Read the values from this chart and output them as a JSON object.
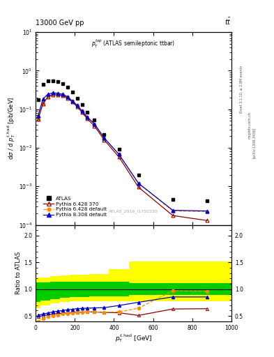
{
  "title_left": "13000 GeV pp",
  "title_right": "t$\\bar{t}$",
  "panel_label": "$p_T^{top}$ (ATLAS semileptonic ttbar)",
  "watermark": "ATLAS_2019_I1750330",
  "rivet_label": "Rivet 3.1.10, ≥ 2.8M events",
  "arxiv_label": "[arXiv:1306.3436]",
  "mcplots_label": "mcplots.cern.ch",
  "ylabel_main": "d$\\sigma$ / d $p_T^{t,had}$ [pb/GeV]",
  "ylabel_ratio": "Ratio to ATLAS",
  "xlabel": "$p_T^{t,had}$ [GeV]",
  "xlim": [
    0,
    1000
  ],
  "ylim_main": [
    0.0001,
    10
  ],
  "ylim_ratio": [
    0.4,
    2.2
  ],
  "atlas_x": [
    12.5,
    37.5,
    62.5,
    87.5,
    112.5,
    137.5,
    162.5,
    187.5,
    212.5,
    237.5,
    262.5,
    300,
    350,
    425,
    525,
    700,
    875
  ],
  "atlas_y": [
    0.175,
    0.45,
    0.55,
    0.55,
    0.52,
    0.47,
    0.38,
    0.28,
    0.195,
    0.13,
    0.085,
    0.052,
    0.022,
    0.0093,
    0.002,
    0.00045,
    0.00042
  ],
  "py6_370_x": [
    12.5,
    37.5,
    62.5,
    87.5,
    112.5,
    137.5,
    162.5,
    187.5,
    212.5,
    237.5,
    262.5,
    300,
    350,
    425,
    525,
    700,
    875
  ],
  "py6_370_y": [
    0.055,
    0.14,
    0.21,
    0.235,
    0.235,
    0.225,
    0.195,
    0.155,
    0.115,
    0.082,
    0.057,
    0.037,
    0.016,
    0.0058,
    0.00095,
    0.000175,
    0.00013
  ],
  "py6_def_x": [
    12.5,
    37.5,
    62.5,
    87.5,
    112.5,
    137.5,
    162.5,
    187.5,
    212.5,
    237.5,
    262.5,
    300,
    350,
    425,
    525,
    700,
    875
  ],
  "py6_def_y": [
    0.055,
    0.145,
    0.215,
    0.245,
    0.245,
    0.235,
    0.205,
    0.165,
    0.125,
    0.09,
    0.063,
    0.042,
    0.018,
    0.0068,
    0.0012,
    0.00023,
    0.00022
  ],
  "py8_def_x": [
    12.5,
    37.5,
    62.5,
    87.5,
    112.5,
    137.5,
    162.5,
    187.5,
    212.5,
    237.5,
    262.5,
    300,
    350,
    425,
    525,
    700,
    875
  ],
  "py8_def_y": [
    0.068,
    0.185,
    0.245,
    0.265,
    0.26,
    0.245,
    0.21,
    0.165,
    0.125,
    0.09,
    0.063,
    0.042,
    0.018,
    0.0068,
    0.0012,
    0.00024,
    0.00023
  ],
  "ratio_py6_370_x": [
    12.5,
    37.5,
    62.5,
    87.5,
    112.5,
    137.5,
    162.5,
    187.5,
    212.5,
    237.5,
    262.5,
    300,
    350,
    425,
    525,
    700,
    875
  ],
  "ratio_py6_370_y": [
    0.49,
    0.505,
    0.52,
    0.535,
    0.545,
    0.55,
    0.555,
    0.565,
    0.57,
    0.575,
    0.575,
    0.575,
    0.565,
    0.56,
    0.51,
    0.63,
    0.635
  ],
  "ratio_py6_def_x": [
    12.5,
    37.5,
    62.5,
    87.5,
    112.5,
    137.5,
    162.5,
    187.5,
    212.5,
    237.5,
    262.5,
    300,
    350,
    425,
    525,
    700,
    875
  ],
  "ratio_py6_def_y": [
    0.4,
    0.455,
    0.485,
    0.505,
    0.52,
    0.535,
    0.545,
    0.555,
    0.565,
    0.57,
    0.575,
    0.575,
    0.57,
    0.575,
    0.645,
    0.97,
    0.96
  ],
  "ratio_py8_def_x": [
    12.5,
    37.5,
    62.5,
    87.5,
    112.5,
    137.5,
    162.5,
    187.5,
    212.5,
    237.5,
    262.5,
    300,
    350,
    425,
    525,
    700,
    875
  ],
  "ratio_py8_def_y": [
    0.51,
    0.535,
    0.555,
    0.575,
    0.59,
    0.6,
    0.615,
    0.625,
    0.635,
    0.64,
    0.645,
    0.65,
    0.655,
    0.695,
    0.755,
    0.855,
    0.855
  ],
  "band_yellow_x": [
    0,
    25,
    75,
    125,
    175,
    275,
    375,
    475,
    600,
    1000
  ],
  "band_yellow_lo": [
    0.65,
    0.7,
    0.74,
    0.76,
    0.77,
    0.77,
    0.78,
    0.77,
    0.77,
    0.77
  ],
  "band_yellow_hi": [
    1.22,
    1.22,
    1.25,
    1.26,
    1.27,
    1.28,
    1.38,
    1.52,
    1.52,
    1.52
  ],
  "band_green_x": [
    0,
    25,
    75,
    125,
    175,
    275,
    375,
    475,
    600,
    1000
  ],
  "band_green_lo": [
    0.76,
    0.79,
    0.82,
    0.84,
    0.85,
    0.86,
    0.87,
    0.89,
    0.89,
    0.89
  ],
  "band_green_hi": [
    1.13,
    1.13,
    1.14,
    1.14,
    1.14,
    1.14,
    1.14,
    1.12,
    1.12,
    1.12
  ],
  "color_atlas": "#000000",
  "color_py6_370": "#8b0000",
  "color_py6_def": "#ff8c00",
  "color_py8_def": "#0000cc",
  "color_green_band": "#00cc00",
  "color_yellow_band": "#ffff00"
}
